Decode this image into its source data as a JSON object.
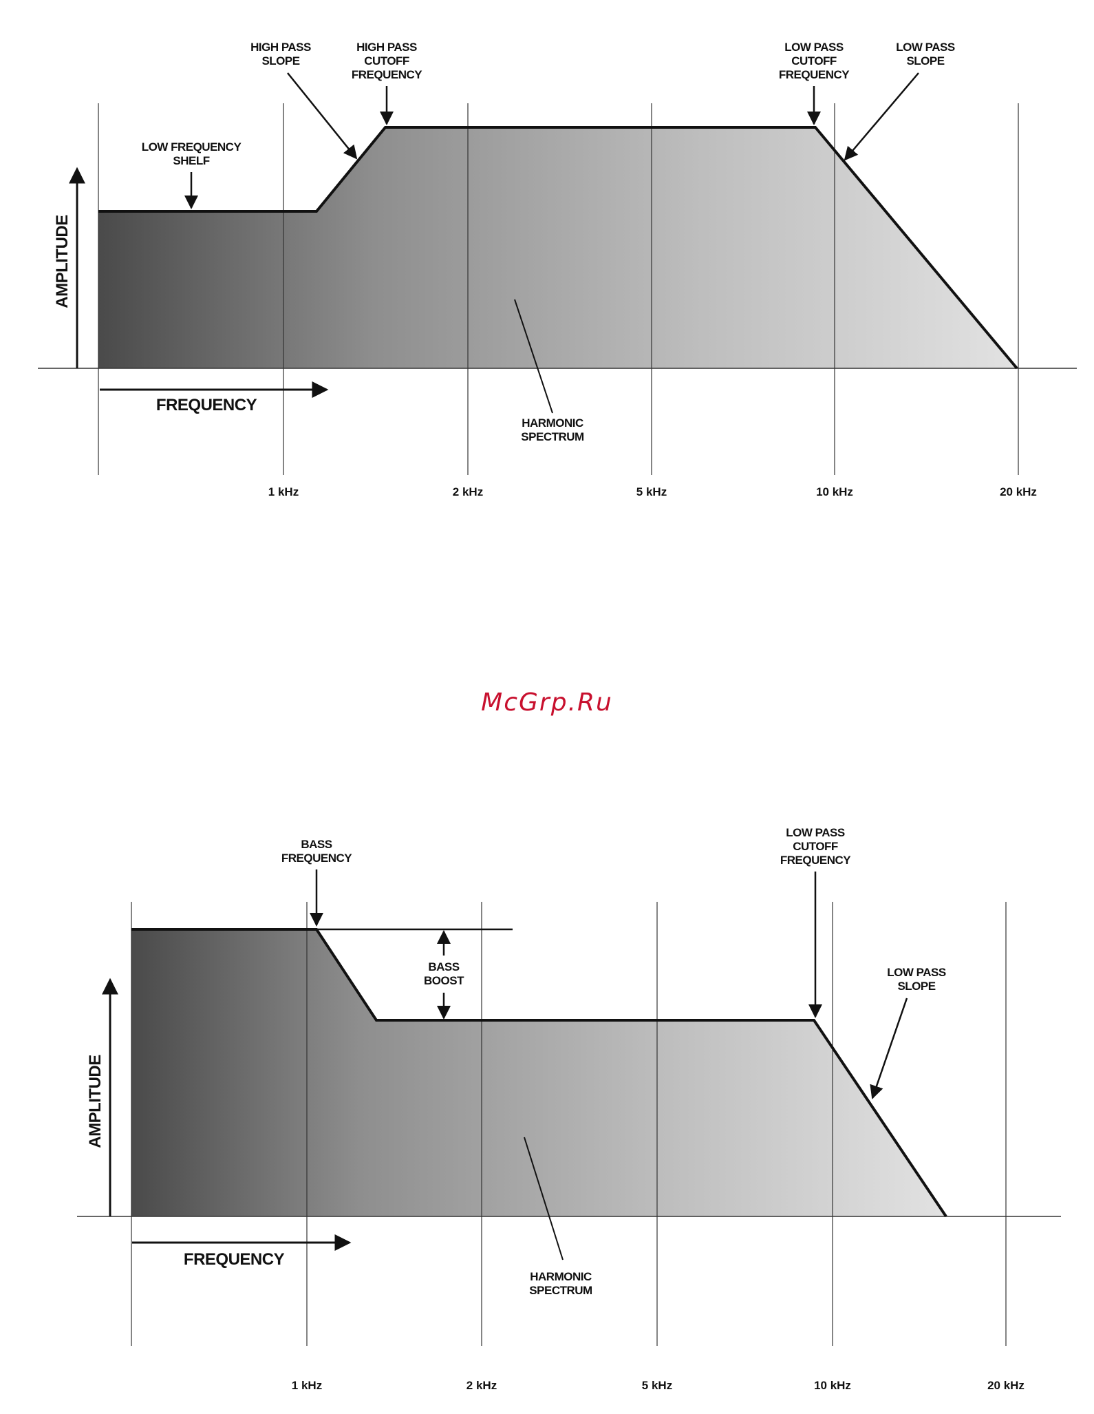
{
  "watermark": "McGrp.Ru",
  "colors": {
    "line": "#111111",
    "grid": "#333333",
    "fill_dark": "#4a4a4a",
    "fill_light": "#e2e2e2",
    "watermark": "#c8102e"
  },
  "top_diagram": {
    "y_axis_label": "AMPLITUDE",
    "x_axis_label": "FREQUENCY",
    "ticks": [
      "1 kHz",
      "2 kHz",
      "5 kHz",
      "10 kHz",
      "20 kHz"
    ],
    "annotations": {
      "high_pass_slope": [
        "HIGH PASS",
        "SLOPE"
      ],
      "high_pass_cutoff": [
        "HIGH PASS",
        "CUTOFF",
        "FREQUENCY"
      ],
      "low_pass_cutoff": [
        "LOW PASS",
        "CUTOFF",
        "FREQUENCY"
      ],
      "low_pass_slope": [
        "LOW PASS",
        "SLOPE"
      ],
      "low_frequency_shelf": [
        "LOW FREQUENCY",
        "SHELF"
      ],
      "harmonic_spectrum": [
        "HARMONIC",
        "SPECTRUM"
      ]
    }
  },
  "bottom_diagram": {
    "y_axis_label": "AMPLITUDE",
    "x_axis_label": "FREQUENCY",
    "ticks": [
      "1 kHz",
      "2 kHz",
      "5 kHz",
      "10 kHz",
      "20 kHz"
    ],
    "annotations": {
      "bass_frequency": [
        "BASS",
        "FREQUENCY"
      ],
      "bass_boost": [
        "BASS",
        "BOOST"
      ],
      "low_pass_cutoff": [
        "LOW PASS",
        "CUTOFF",
        "FREQUENCY"
      ],
      "low_pass_slope": [
        "LOW PASS",
        "SLOPE"
      ],
      "harmonic_spectrum": [
        "HARMONIC",
        "SPECTRUM"
      ]
    }
  }
}
